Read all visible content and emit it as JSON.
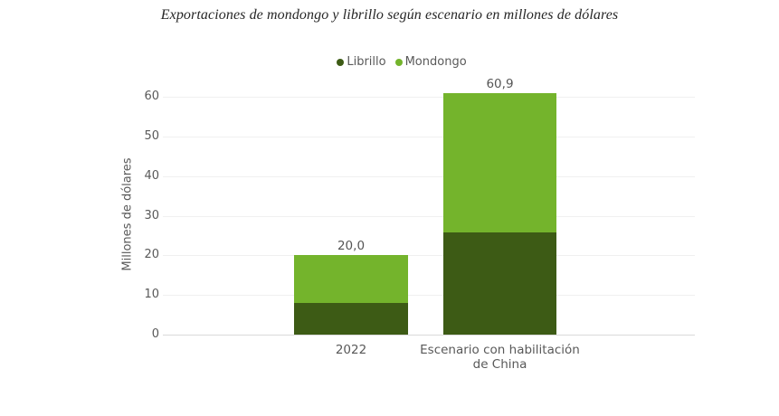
{
  "chart_data": {
    "type": "bar",
    "stacked": true,
    "title": "Exportaciones de mondongo y librillo según escenario en millones de dólares",
    "ylabel": "Millones de dólares",
    "xlabel": "",
    "categories": [
      "2022",
      "Escenario con habilitación de China"
    ],
    "series": [
      {
        "name": "Librillo",
        "color": "#3d5b15",
        "values": [
          8.0,
          25.8
        ]
      },
      {
        "name": "Mondongo",
        "color": "#74b42c",
        "values": [
          12.0,
          35.1
        ]
      }
    ],
    "totals": [
      20.0,
      60.9
    ],
    "total_labels": [
      "20,0",
      "60,9"
    ],
    "ylim": [
      0,
      62
    ],
    "yticks": [
      0,
      10,
      20,
      30,
      40,
      50,
      60
    ],
    "grid": true,
    "legend_position": "top",
    "background_color": "#ffffff",
    "text_color": "#595959"
  }
}
